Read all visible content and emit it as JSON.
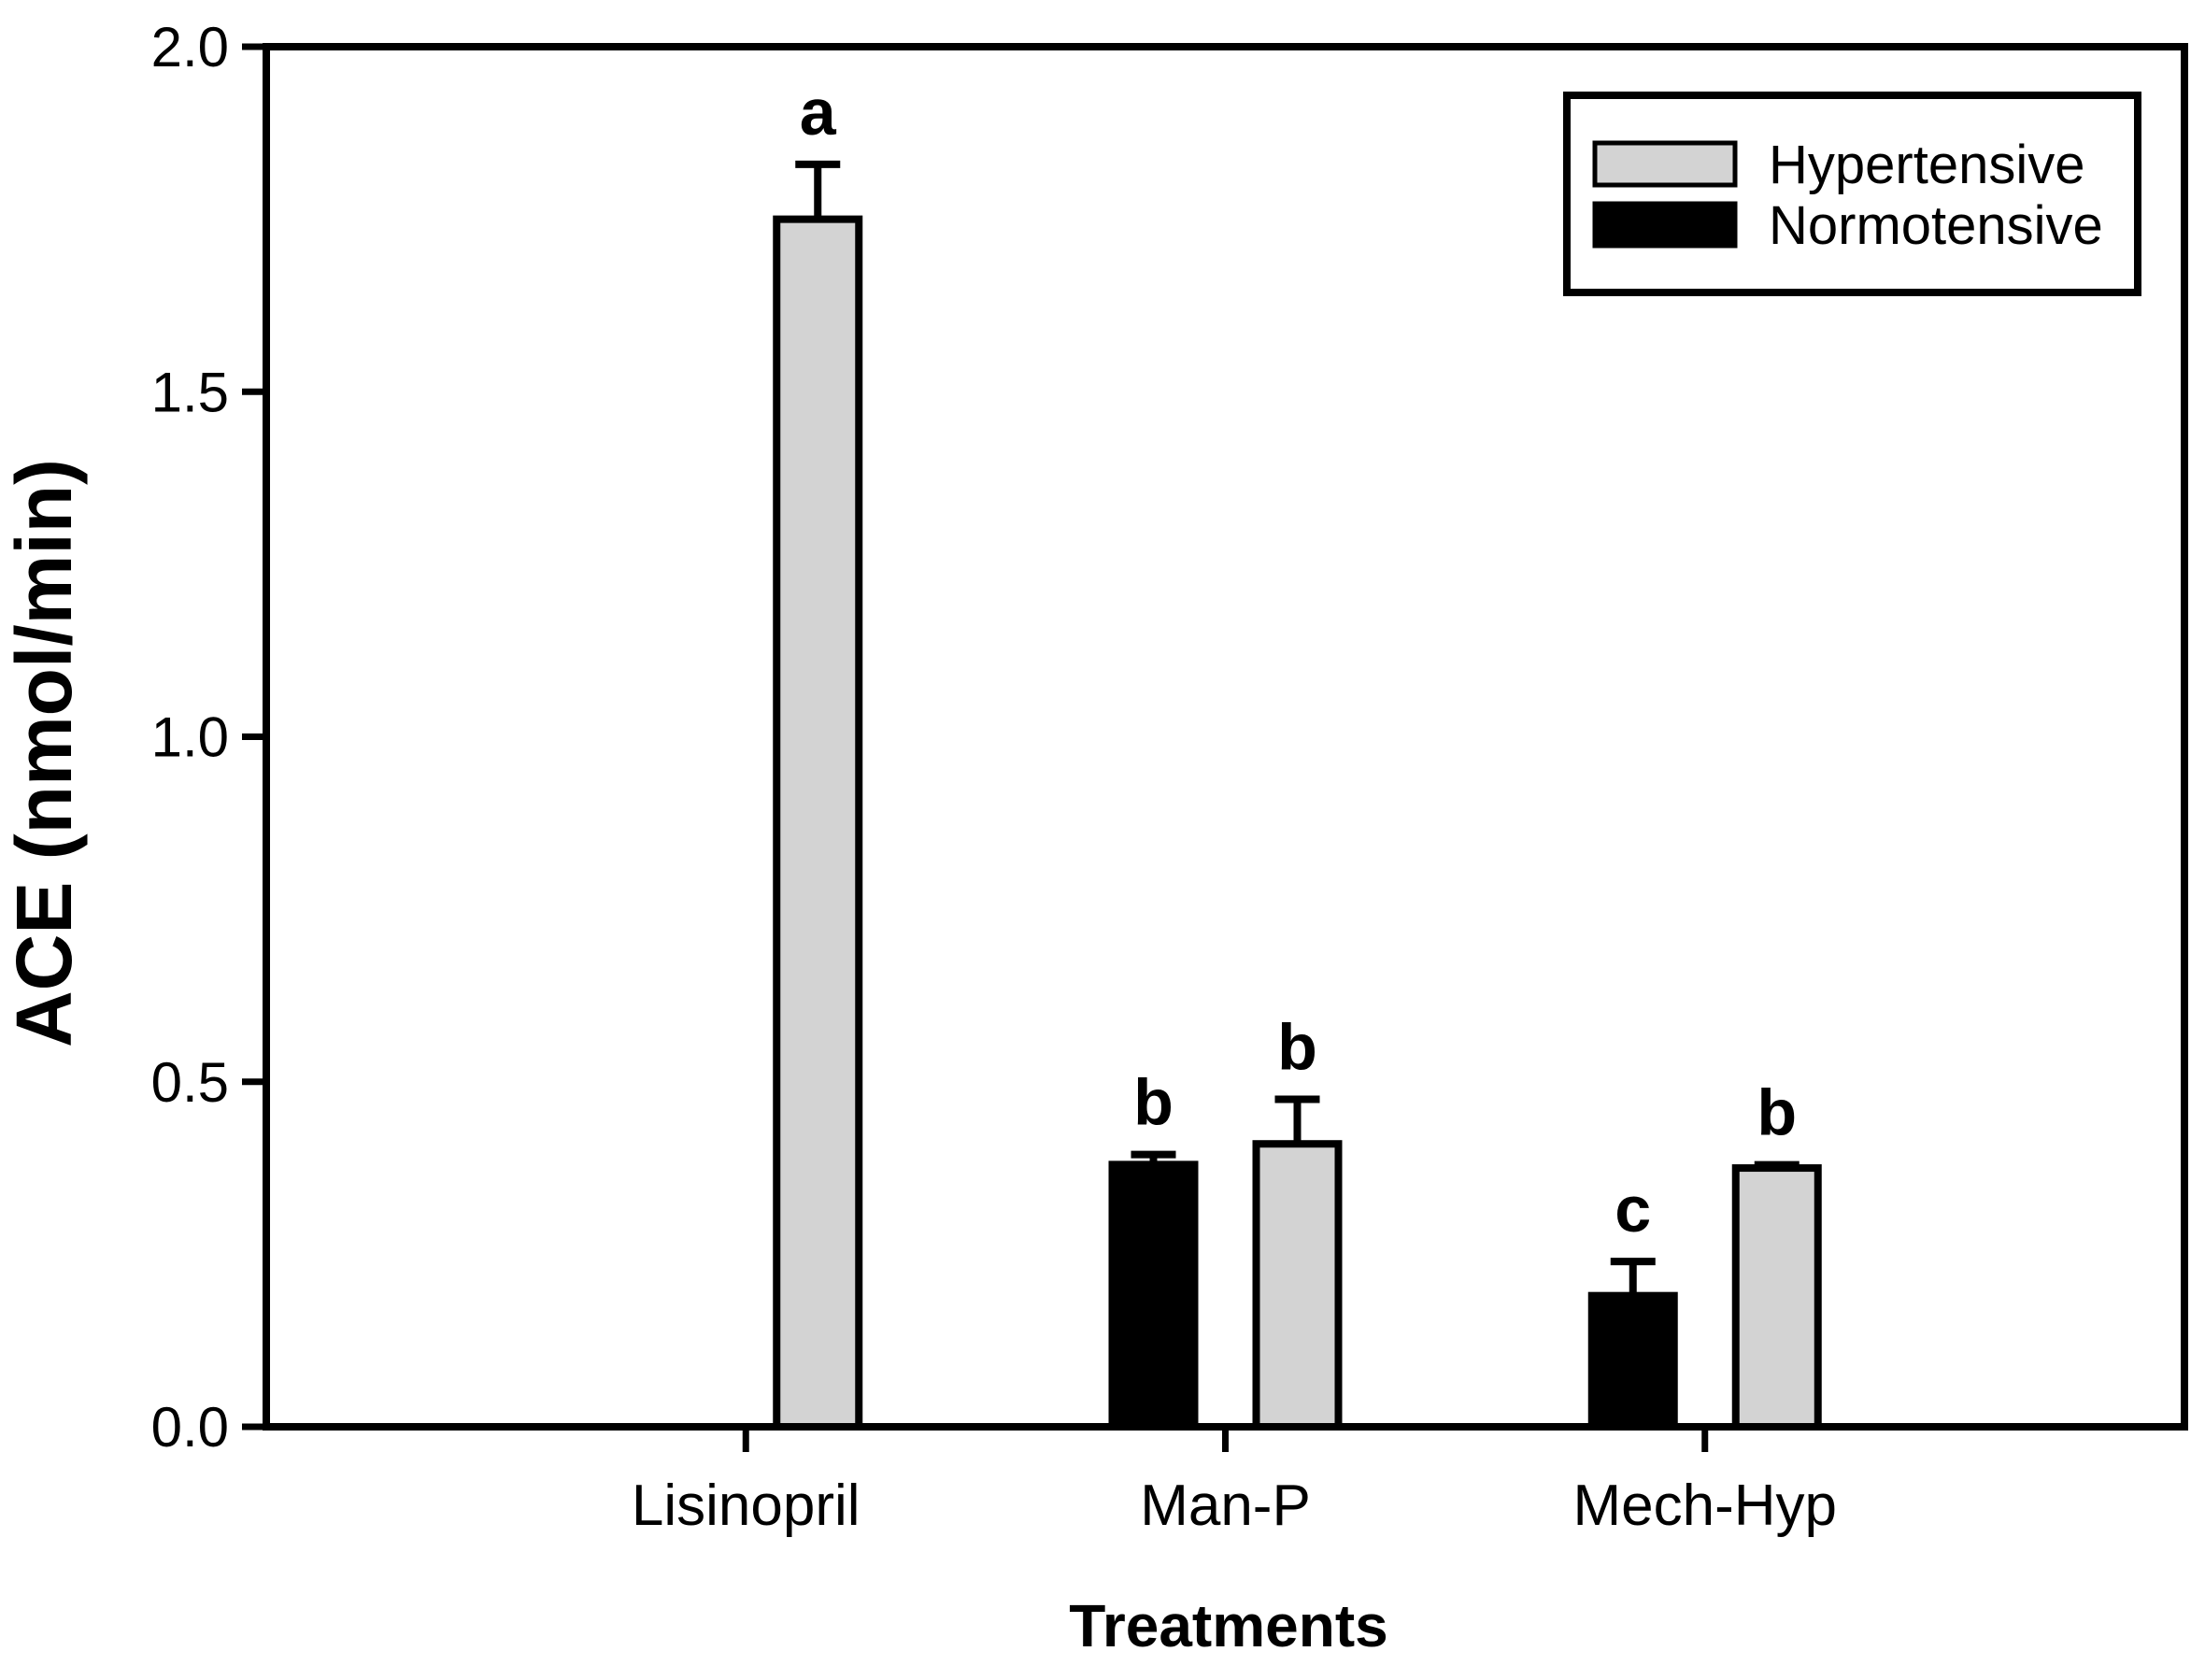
{
  "chart_data": {
    "type": "bar",
    "title": "",
    "xlabel": "Treatments",
    "ylabel": "ACE (nmol/min)",
    "ylim": [
      0.0,
      2.0
    ],
    "ytick_labels": [
      "0.0",
      "0.5",
      "1.0",
      "1.5",
      "2.0"
    ],
    "categories": [
      "Lisinopril",
      "Man-P",
      "Mech-Hyp"
    ],
    "series": [
      {
        "name": "Normotensive",
        "color": "#000000",
        "values": [
          null,
          0.38,
          0.19
        ],
        "errors": [
          null,
          0.02,
          0.055
        ],
        "sig_letters": [
          null,
          "b",
          "c"
        ]
      },
      {
        "name": "Hypertensive",
        "color": "#d3d3d3",
        "values": [
          1.75,
          0.41,
          0.375
        ],
        "errors": [
          0.085,
          0.07,
          0.01
        ],
        "sig_letters": [
          "a",
          "b",
          "b"
        ]
      }
    ],
    "error_bars": "upper-only",
    "grid": false,
    "legend": {
      "position": "top-right",
      "entries": [
        {
          "label": "Hypertensive",
          "color": "#d3d3d3"
        },
        {
          "label": "Normotensive",
          "color": "#000000"
        }
      ]
    },
    "axis_color": "#000000",
    "background_color": "#ffffff"
  }
}
